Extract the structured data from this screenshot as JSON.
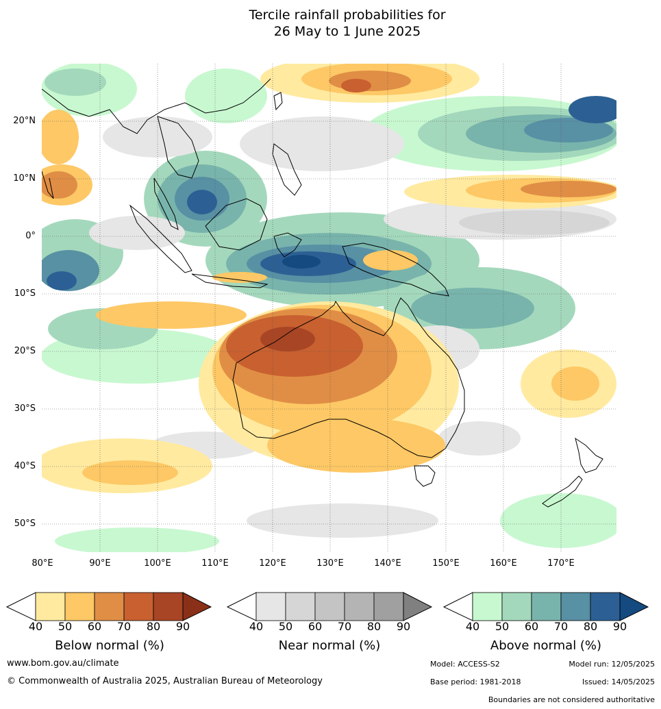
{
  "title_line1": "Tercile rainfall probabilities for",
  "title_line2": "26 May to 1 June 2025",
  "lat_labels": [
    "20°N",
    "10°N",
    "0°",
    "10°S",
    "20°S",
    "30°S",
    "40°S",
    "50°S"
  ],
  "lon_labels": [
    "80°E",
    "90°E",
    "100°E",
    "110°E",
    "120°E",
    "130°E",
    "140°E",
    "150°E",
    "160°E",
    "170°E"
  ],
  "legends": {
    "below": {
      "title": "Below normal (%)",
      "ticks": [
        "40",
        "50",
        "60",
        "70",
        "80",
        "90"
      ],
      "colors": [
        "#ffeaa0",
        "#fdc865",
        "#e08e45",
        "#c86030",
        "#a84525",
        "#8a3018"
      ]
    },
    "near": {
      "title": "Near normal (%)",
      "ticks": [
        "40",
        "50",
        "60",
        "70",
        "80",
        "90"
      ],
      "colors": [
        "#e6e6e6",
        "#d6d6d6",
        "#c4c4c4",
        "#b4b4b4",
        "#a0a0a0",
        "#808080"
      ]
    },
    "above": {
      "title": "Above normal (%)",
      "ticks": [
        "40",
        "50",
        "60",
        "70",
        "80",
        "90"
      ],
      "colors": [
        "#c8f8d0",
        "#a4d8bc",
        "#78b4ac",
        "#5890a4",
        "#2c6094",
        "#154a80"
      ]
    }
  },
  "footer": {
    "website": "www.bom.gov.au/climate",
    "copyright": "© Commonwealth of Australia 2025, Australian Bureau of Meteorology",
    "model": "Model: ACCESS-S2",
    "model_run": "Model run: 12/05/2025",
    "base_period": "Base period: 1981-2018",
    "issued": "Issued: 14/05/2025",
    "disclaimer": "Boundaries are not considered authoritative"
  }
}
